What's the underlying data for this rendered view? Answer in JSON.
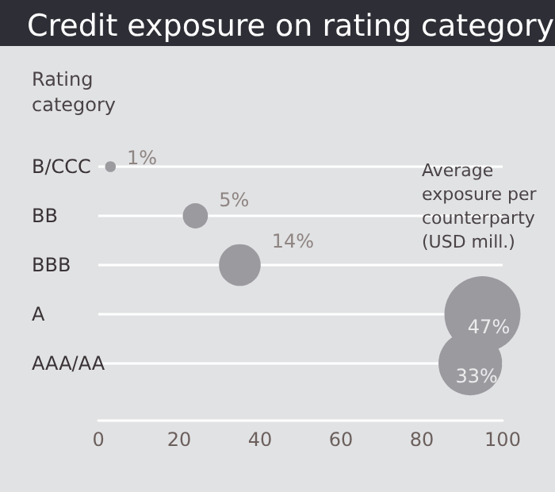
{
  "chart_data": {
    "type": "bubble",
    "title": "Credit exposure on rating category",
    "ylabel": "Rating category",
    "xlabel": "Average exposure per counterparty (USD mill.)",
    "categories": [
      "B/CCC",
      "BB",
      "BBB",
      "A",
      "AAA/AA"
    ],
    "orientation": "horizontal",
    "values": [
      3,
      24,
      35,
      95,
      92
    ],
    "sizes": [
      0.02,
      0.11,
      0.3,
      1,
      0.7
    ],
    "annotations": [
      {
        "text": "1%",
        "x": 3,
        "y": "B/CCC"
      },
      {
        "text": "5%",
        "x": 24,
        "y": "BB"
      },
      {
        "text": "14%",
        "x": 35,
        "y": "BBB"
      },
      {
        "text": "47%",
        "x": 95,
        "y": "A"
      },
      {
        "text": "33%",
        "x": 92,
        "y": "AAA/AA"
      }
    ],
    "color": "#9b9a9f",
    "xlim": [
      0,
      100
    ],
    "xticks": [
      0,
      20,
      40,
      60,
      80,
      100
    ],
    "grid": "y",
    "marker": "circle"
  }
}
